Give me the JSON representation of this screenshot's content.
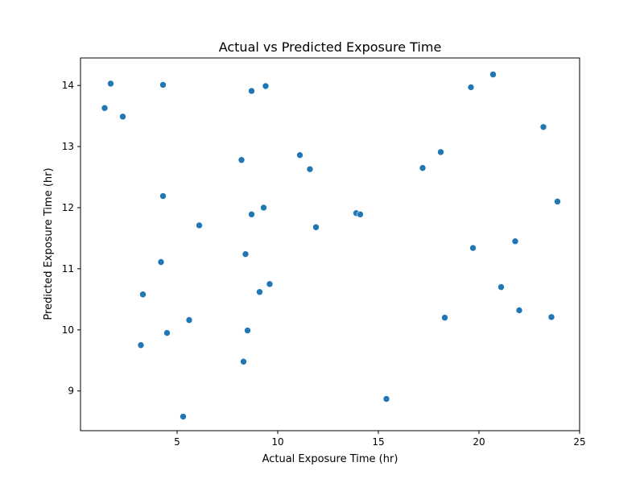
{
  "chart_data": {
    "type": "scatter",
    "title": "Actual vs Predicted Exposure Time",
    "xlabel": "Actual Exposure Time (hr)",
    "ylabel": "Predicted Exposure Time (hr)",
    "xlim": [
      0.2,
      25
    ],
    "ylim": [
      8.35,
      14.45
    ],
    "xticks": [
      5,
      10,
      15,
      20,
      25
    ],
    "yticks": [
      9,
      10,
      11,
      12,
      13,
      14
    ],
    "grid": false,
    "marker_color": "#1f77b4",
    "points": [
      {
        "x": 1.4,
        "y": 13.63
      },
      {
        "x": 1.7,
        "y": 14.03
      },
      {
        "x": 2.3,
        "y": 13.49
      },
      {
        "x": 4.3,
        "y": 14.01
      },
      {
        "x": 3.3,
        "y": 10.58
      },
      {
        "x": 3.2,
        "y": 9.75
      },
      {
        "x": 4.3,
        "y": 12.19
      },
      {
        "x": 4.2,
        "y": 11.11
      },
      {
        "x": 4.5,
        "y": 9.95
      },
      {
        "x": 5.3,
        "y": 8.58
      },
      {
        "x": 5.6,
        "y": 10.16
      },
      {
        "x": 6.1,
        "y": 11.71
      },
      {
        "x": 8.2,
        "y": 12.78
      },
      {
        "x": 8.3,
        "y": 9.48
      },
      {
        "x": 8.4,
        "y": 11.24
      },
      {
        "x": 8.5,
        "y": 9.99
      },
      {
        "x": 8.7,
        "y": 13.91
      },
      {
        "x": 8.7,
        "y": 11.89
      },
      {
        "x": 9.1,
        "y": 10.62
      },
      {
        "x": 9.3,
        "y": 12.0
      },
      {
        "x": 9.4,
        "y": 13.99
      },
      {
        "x": 9.6,
        "y": 10.75
      },
      {
        "x": 11.1,
        "y": 12.86
      },
      {
        "x": 11.6,
        "y": 12.63
      },
      {
        "x": 11.9,
        "y": 11.68
      },
      {
        "x": 13.9,
        "y": 11.91
      },
      {
        "x": 14.1,
        "y": 11.89
      },
      {
        "x": 15.4,
        "y": 8.87
      },
      {
        "x": 17.2,
        "y": 12.65
      },
      {
        "x": 18.1,
        "y": 12.91
      },
      {
        "x": 18.3,
        "y": 10.2
      },
      {
        "x": 19.6,
        "y": 13.97
      },
      {
        "x": 19.7,
        "y": 11.34
      },
      {
        "x": 20.7,
        "y": 14.18
      },
      {
        "x": 21.1,
        "y": 10.7
      },
      {
        "x": 21.8,
        "y": 11.45
      },
      {
        "x": 22.0,
        "y": 10.32
      },
      {
        "x": 23.2,
        "y": 13.32
      },
      {
        "x": 23.6,
        "y": 10.21
      },
      {
        "x": 23.9,
        "y": 12.1
      }
    ]
  }
}
